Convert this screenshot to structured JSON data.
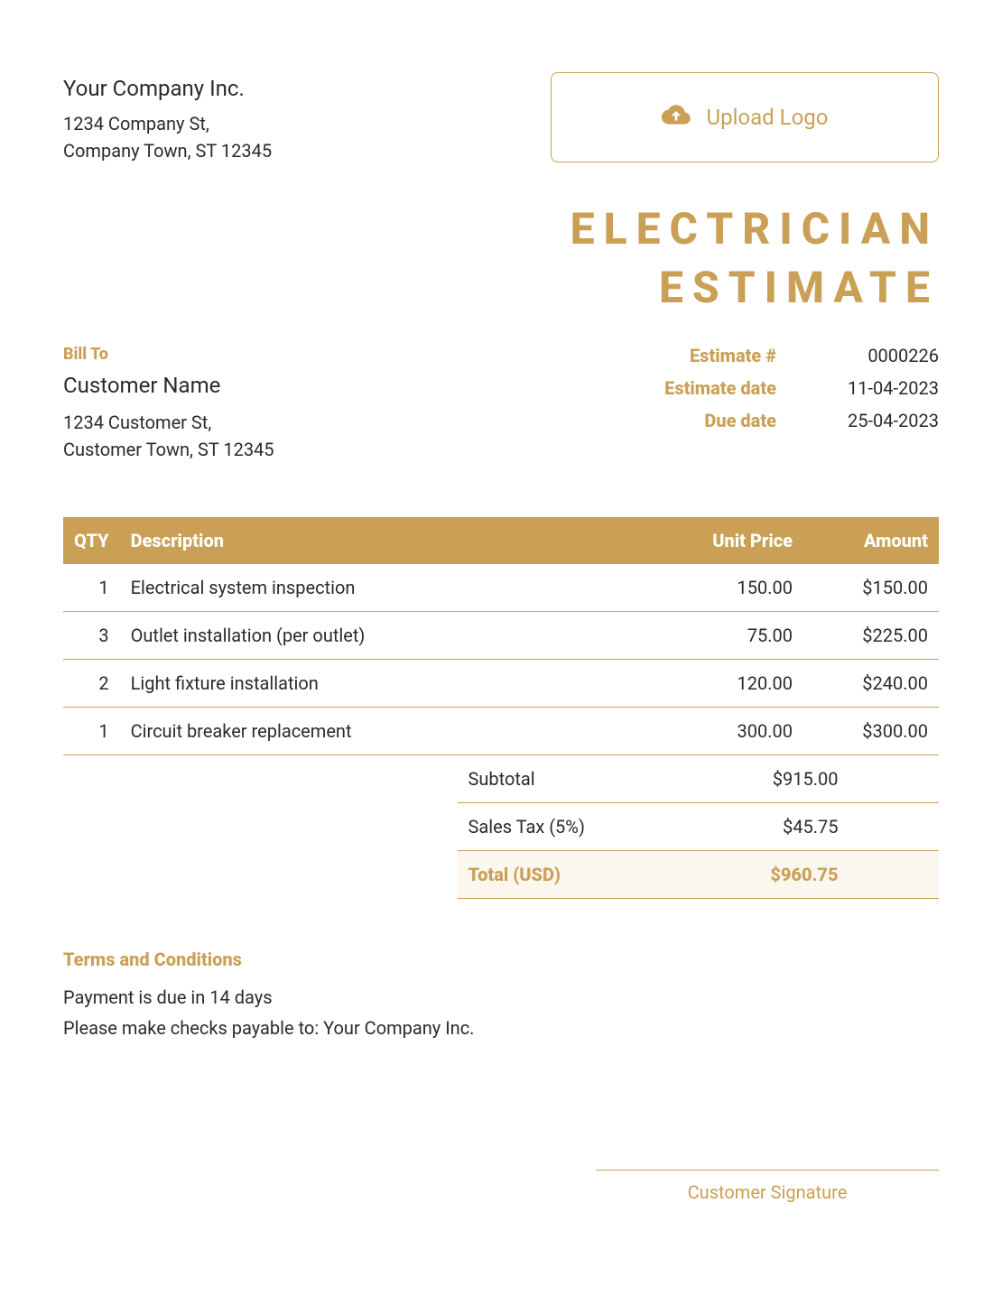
{
  "colors": {
    "accent": "#c9a055",
    "text": "#2b2b2b",
    "total_bg": "#fbf7ef",
    "background": "#ffffff"
  },
  "company": {
    "name": "Your Company Inc.",
    "address_line1": "1234 Company St,",
    "address_line2": "Company Town, ST 12345"
  },
  "upload_logo_label": "Upload Logo",
  "document_title_line1": "ELECTRICIAN",
  "document_title_line2": "ESTIMATE",
  "bill_to": {
    "heading": "Bill To",
    "customer_name": "Customer Name",
    "address_line1": "1234 Customer St,",
    "address_line2": "Customer Town, ST 12345"
  },
  "meta": {
    "estimate_number_label": "Estimate #",
    "estimate_number": "0000226",
    "estimate_date_label": "Estimate date",
    "estimate_date": "11-04-2023",
    "due_date_label": "Due date",
    "due_date": "25-04-2023"
  },
  "table": {
    "headers": {
      "qty": "QTY",
      "description": "Description",
      "unit_price": "Unit Price",
      "amount": "Amount"
    },
    "rows": [
      {
        "qty": "1",
        "description": "Electrical system inspection",
        "unit_price": "150.00",
        "amount": "$150.00"
      },
      {
        "qty": "3",
        "description": "Outlet installation (per outlet)",
        "unit_price": "75.00",
        "amount": "$225.00"
      },
      {
        "qty": "2",
        "description": "Light fixture installation",
        "unit_price": "120.00",
        "amount": "$240.00"
      },
      {
        "qty": "1",
        "description": "Circuit breaker replacement",
        "unit_price": "300.00",
        "amount": "$300.00"
      }
    ]
  },
  "totals": {
    "subtotal_label": "Subtotal",
    "subtotal": "$915.00",
    "tax_label": "Sales Tax (5%)",
    "tax": "$45.75",
    "total_label": "Total (USD)",
    "total": "$960.75"
  },
  "terms": {
    "heading": "Terms and Conditions",
    "line1": "Payment is due in 14 days",
    "line2": "Please make checks payable to: Your Company Inc."
  },
  "signature_label": "Customer Signature"
}
